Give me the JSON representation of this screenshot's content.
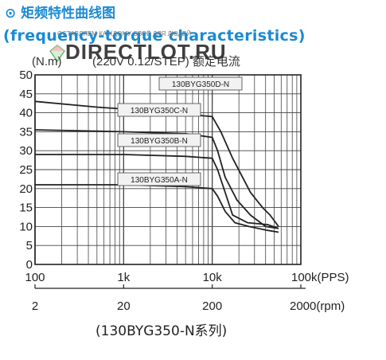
{
  "header": {
    "title_cn": "⊙ 矩频特性曲线图",
    "title_en": "(frequency-torque characteristics)"
  },
  "watermark": {
    "small_text": "ОСТАВЛЯЕМ КАЖДОМУ СВОЁ ДЛЯ ЛЮДЕЙ",
    "site_text": "DIRECTLOT.RU",
    "logo_icon": "diamond-logo-icon"
  },
  "chart_data": {
    "type": "line",
    "title": "矩频特性曲线图",
    "y_unit_label": "(N.m)",
    "condition_label": "(220V 0.12/STEP) 额定电流",
    "subtitle": "(130BYG350-N系列)",
    "ylim": [
      0,
      50
    ],
    "y_ticks": [
      0,
      5,
      10,
      15,
      20,
      25,
      30,
      35,
      40,
      45,
      50
    ],
    "x_scale": "log",
    "xlim": [
      100,
      100000
    ],
    "x_ticks": [
      {
        "value": 100,
        "label": "100"
      },
      {
        "value": 1000,
        "label": "1k"
      },
      {
        "value": 10000,
        "label": "10k"
      },
      {
        "value": 100000,
        "label": "100k(PPS)"
      }
    ],
    "x2_ticks": [
      {
        "value": 2,
        "label": "2"
      },
      {
        "value": 20,
        "label": "20"
      },
      {
        "value": 200,
        "label": "200"
      },
      {
        "value": 2000,
        "label": "2000(rpm)"
      }
    ],
    "grid": true,
    "line_color": "#222222",
    "series": [
      {
        "name": "130BYG350D-N",
        "points": [
          [
            100,
            43
          ],
          [
            500,
            41.5
          ],
          [
            2000,
            40.5
          ],
          [
            10000,
            39
          ],
          [
            12500,
            35
          ],
          [
            17000,
            28
          ],
          [
            27000,
            19
          ],
          [
            37000,
            15
          ],
          [
            45000,
            13
          ],
          [
            56000,
            10
          ]
        ]
      },
      {
        "name": "130BYG350C-N",
        "points": [
          [
            100,
            35.5
          ],
          [
            1000,
            35
          ],
          [
            5000,
            34.5
          ],
          [
            10000,
            33.5
          ],
          [
            11500,
            30
          ],
          [
            14000,
            23
          ],
          [
            19000,
            17
          ],
          [
            27000,
            13
          ],
          [
            40000,
            10
          ],
          [
            56000,
            9.5
          ]
        ]
      },
      {
        "name": "130BYG350B-N",
        "points": [
          [
            100,
            29
          ],
          [
            1000,
            29
          ],
          [
            5000,
            28.5
          ],
          [
            10000,
            28
          ],
          [
            11500,
            25
          ],
          [
            14000,
            19
          ],
          [
            17000,
            13
          ],
          [
            25000,
            11
          ],
          [
            42000,
            10.5
          ],
          [
            56000,
            9.5
          ]
        ]
      },
      {
        "name": "130BYG350A-N",
        "points": [
          [
            100,
            21
          ],
          [
            1000,
            21
          ],
          [
            5000,
            20.5
          ],
          [
            10000,
            20
          ],
          [
            11500,
            18
          ],
          [
            14000,
            14
          ],
          [
            18000,
            11
          ],
          [
            26000,
            10
          ],
          [
            42000,
            9
          ],
          [
            56000,
            8.5
          ]
        ]
      }
    ]
  }
}
